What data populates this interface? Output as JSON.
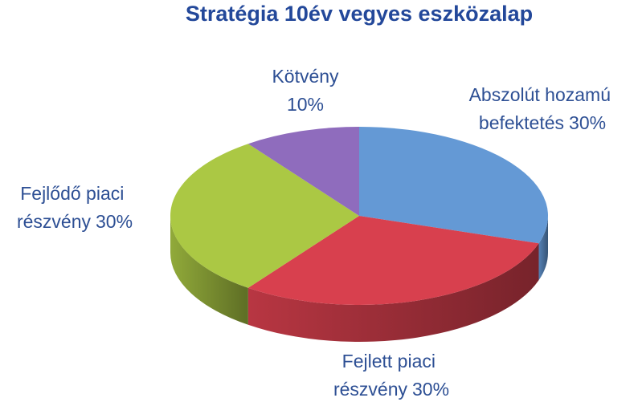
{
  "chart_data": {
    "type": "pie",
    "title": "Stratégia 10év vegyes eszközalap",
    "categories": [
      "Abszolút hozamú befektetés",
      "Fejlett piaci részvény",
      "Fejlődő piaci részvény",
      "Kötvény"
    ],
    "values": [
      30,
      30,
      30,
      10
    ],
    "value_labels": [
      "30%",
      "30%",
      "30%",
      "10%"
    ],
    "colors": [
      "#6499d5",
      "#d8404e",
      "#abc844",
      "#8f6cbd"
    ]
  }
}
